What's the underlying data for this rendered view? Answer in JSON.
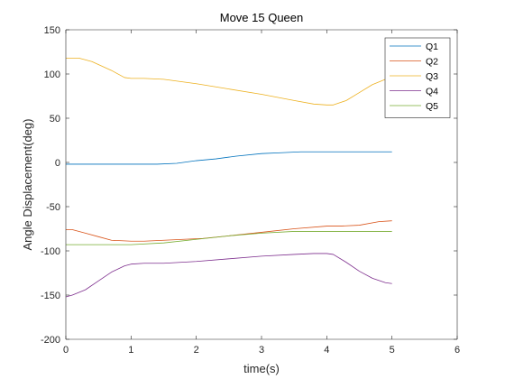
{
  "chart_data": {
    "type": "line",
    "title": "Move 15 Queen",
    "xlabel": "time(s)",
    "ylabel": "Angle Displacement(deg)",
    "xlim": [
      0,
      6
    ],
    "ylim": [
      -200,
      150
    ],
    "xticks": [
      0,
      1,
      2,
      3,
      4,
      5,
      6
    ],
    "yticks": [
      -200,
      -150,
      -100,
      -50,
      0,
      50,
      100,
      150
    ],
    "grid": false,
    "legend_position": "top-right",
    "series": [
      {
        "name": "Q1",
        "color": "#0072bd",
        "x": [
          0,
          0.5,
          1.0,
          1.4,
          1.7,
          2.0,
          2.3,
          2.6,
          3.0,
          3.3,
          3.6,
          3.9,
          4.2,
          4.5,
          5.0
        ],
        "y": [
          -2,
          -2,
          -2,
          -2,
          -1,
          2,
          4,
          7,
          10,
          11,
          12,
          12,
          12,
          12,
          12
        ]
      },
      {
        "name": "Q2",
        "color": "#d95319",
        "x": [
          0,
          0.1,
          0.3,
          0.5,
          0.7,
          1.0,
          1.2,
          1.5,
          1.8,
          2.1,
          2.5,
          3.0,
          3.5,
          4.0,
          4.2,
          4.5,
          4.8,
          5.0
        ],
        "y": [
          -76,
          -76,
          -80,
          -84,
          -88,
          -89,
          -89,
          -88,
          -87,
          -86,
          -83,
          -79,
          -75,
          -72,
          -72,
          -71,
          -67,
          -66
        ]
      },
      {
        "name": "Q3",
        "color": "#edb120",
        "x": [
          0,
          0.2,
          0.4,
          0.7,
          0.9,
          1.0,
          1.2,
          1.5,
          2.0,
          2.5,
          3.0,
          3.5,
          3.8,
          4.0,
          4.1,
          4.3,
          4.5,
          4.7,
          4.9,
          5.0
        ],
        "y": [
          118,
          118,
          114,
          104,
          96,
          95,
          95,
          94,
          89,
          83,
          77,
          70,
          66,
          65,
          65,
          70,
          79,
          88,
          94,
          95
        ]
      },
      {
        "name": "Q4",
        "color": "#7e2f8e",
        "x": [
          0,
          0.1,
          0.3,
          0.5,
          0.7,
          0.9,
          1.0,
          1.2,
          1.5,
          2.0,
          2.5,
          3.0,
          3.5,
          3.8,
          4.0,
          4.1,
          4.3,
          4.5,
          4.7,
          4.9,
          5.0
        ],
        "y": [
          -152,
          -150,
          -144,
          -134,
          -124,
          -117,
          -115,
          -114,
          -114,
          -112,
          -109,
          -106,
          -104,
          -103,
          -103,
          -104,
          -113,
          -123,
          -131,
          -136,
          -137
        ]
      },
      {
        "name": "Q5",
        "color": "#77ac30",
        "x": [
          0,
          0.5,
          1.0,
          1.5,
          2.0,
          2.5,
          3.0,
          3.5,
          4.0,
          4.5,
          5.0
        ],
        "y": [
          -93,
          -93,
          -93,
          -91,
          -87,
          -83,
          -80,
          -78,
          -78,
          -78,
          -78
        ]
      }
    ]
  }
}
